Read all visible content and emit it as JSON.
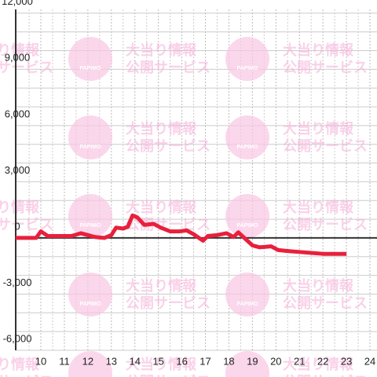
{
  "chart_data": {
    "type": "line",
    "watermark": {
      "line1": "大当り情報",
      "line2": "公開サービス",
      "logo": "PAPIMO"
    },
    "xlim": [
      8.93,
      24.3
    ],
    "ylim": [
      -6000,
      12200
    ],
    "xticks": [
      10,
      11,
      12,
      13,
      14,
      15,
      16,
      17,
      18,
      19,
      20,
      21,
      22,
      23,
      24
    ],
    "yticks": [
      {
        "value": 12000,
        "label": "12,000"
      },
      {
        "value": 9000,
        "label": "9,000"
      },
      {
        "value": 6000,
        "label": "6,000"
      },
      {
        "value": 3000,
        "label": "3,000"
      },
      0,
      {
        "value": -3000,
        "label": "-3,000"
      },
      {
        "value": -6000,
        "label": "-6,000"
      }
    ],
    "ygrid": [
      -5000,
      -4000,
      -2000,
      -1000,
      1000,
      2000,
      4000,
      5000,
      7000,
      8000,
      10000,
      11000
    ],
    "xgrid": [
      9.5,
      10.5,
      11.5,
      12.5,
      13.5,
      14.5,
      15.5,
      16.5,
      17.5,
      18.5,
      19.5,
      20.5,
      21.5,
      22.5,
      23.5
    ],
    "series": [
      {
        "color": "#e8203c",
        "x": [
          8.93,
          9.8,
          10,
          10.3,
          10.7,
          11.3,
          11.7,
          12,
          12.3,
          12.7,
          13,
          13.2,
          13.5,
          13.7,
          13.9,
          14.1,
          14.4,
          14.8,
          15.1,
          15.5,
          15.9,
          16.2,
          16.5,
          16.9,
          17.1,
          17.5,
          17.9,
          18.2,
          18.4,
          18.7,
          19,
          19.3,
          19.8,
          20.1,
          20.5,
          21,
          21.5,
          22,
          23
        ],
        "values": [
          0,
          0,
          350,
          100,
          100,
          100,
          250,
          150,
          50,
          0,
          150,
          550,
          500,
          600,
          1200,
          1100,
          700,
          750,
          550,
          350,
          350,
          400,
          200,
          -150,
          100,
          150,
          250,
          50,
          300,
          -50,
          -400,
          -500,
          -450,
          -650,
          -700,
          -750,
          -800,
          -850,
          -850
        ]
      }
    ]
  }
}
